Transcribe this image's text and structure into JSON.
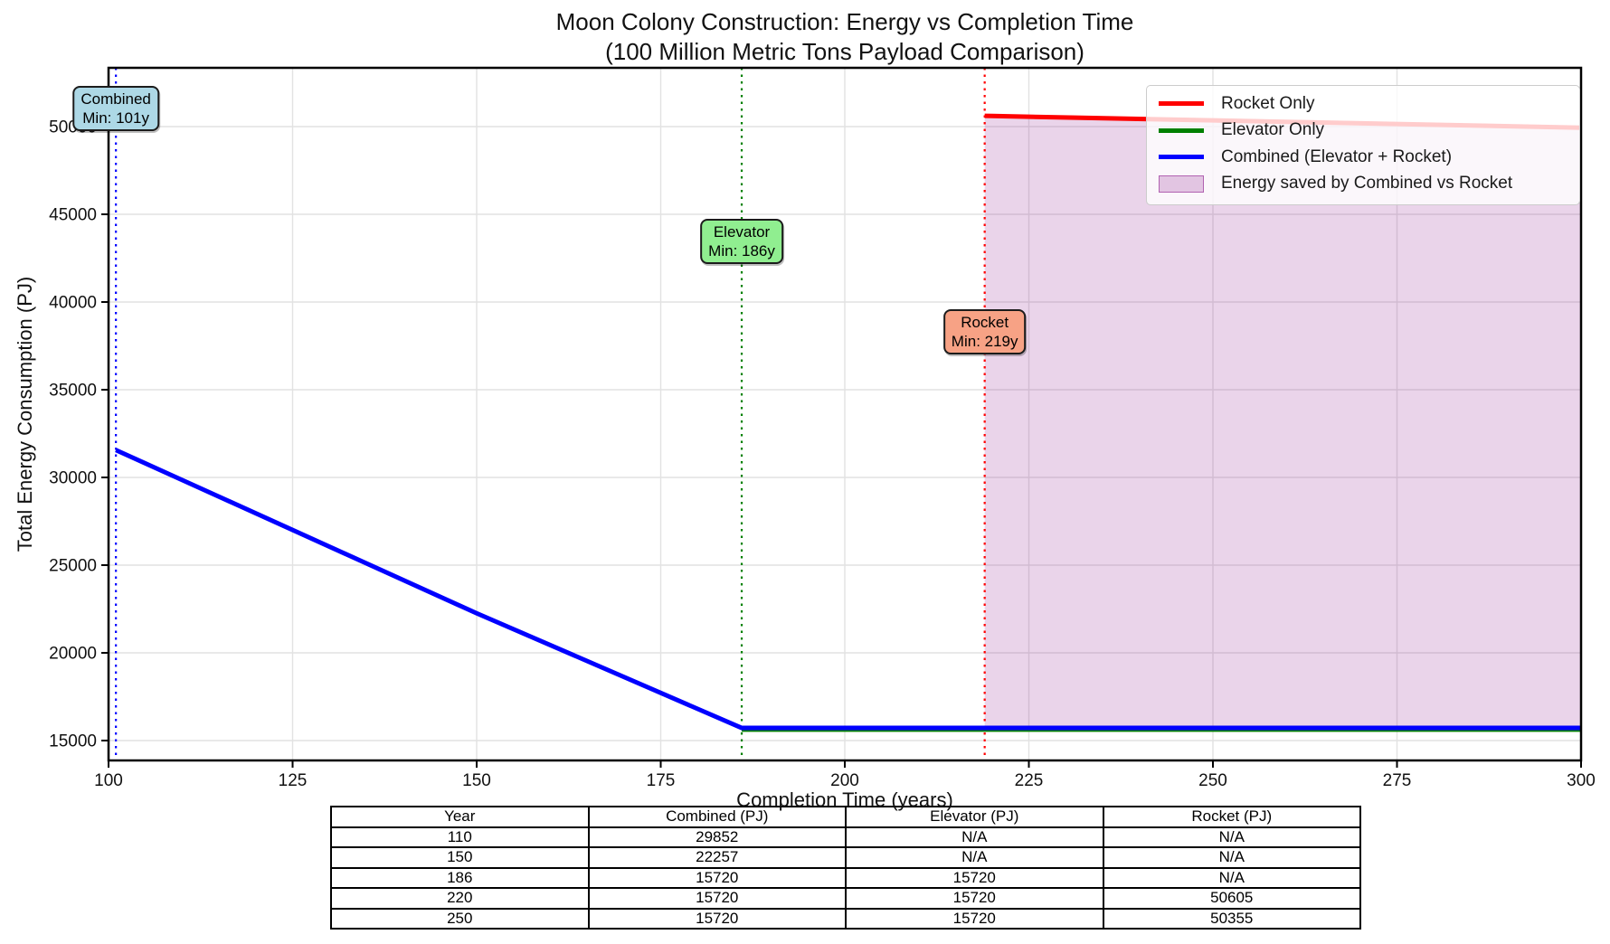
{
  "chart_data": {
    "type": "line",
    "title": "Moon Colony Construction: Energy vs Completion Time",
    "subtitle": "(100 Million Metric Tons Payload Comparison)",
    "xlabel": "Completion Time (years)",
    "ylabel": "Total Energy Consumption (PJ)",
    "xlim": [
      100,
      300
    ],
    "ylim": [
      13866,
      53351
    ],
    "xticks": [
      100,
      125,
      150,
      175,
      200,
      225,
      250,
      275,
      300
    ],
    "yticks": [
      15000,
      20000,
      25000,
      30000,
      35000,
      40000,
      45000,
      50000
    ],
    "grid": true,
    "legend_position": "top-right",
    "series": [
      {
        "name": "Rocket Only",
        "color": "#ff0000",
        "points": [
          [
            219,
            50613
          ],
          [
            220,
            50605
          ],
          [
            250,
            50355
          ],
          [
            300,
            49938
          ]
        ]
      },
      {
        "name": "Elevator Only",
        "color": "#008000",
        "points": [
          [
            186,
            15720
          ],
          [
            300,
            15720
          ]
        ]
      },
      {
        "name": "Combined (Elevator + Rocket)",
        "color": "#0000ff",
        "points": [
          [
            101,
            31561
          ],
          [
            110,
            29852
          ],
          [
            150,
            22257
          ],
          [
            186,
            15720
          ],
          [
            300,
            15720
          ]
        ]
      }
    ],
    "fill_region": {
      "label": "Energy saved by Combined vs Rocket",
      "color": "#800080",
      "alpha": 0.17,
      "polygon": [
        [
          219,
          50613
        ],
        [
          250,
          50355
        ],
        [
          300,
          49938
        ],
        [
          300,
          15720
        ],
        [
          219,
          15720
        ]
      ]
    },
    "vlines": [
      {
        "x": 101,
        "color": "#0000ff"
      },
      {
        "x": 186,
        "color": "#008000"
      },
      {
        "x": 219,
        "color": "#ff0000"
      }
    ],
    "annotations": [
      {
        "line1": "Combined",
        "line2": "Min: 101y",
        "x": 101,
        "fill": "#add8e6"
      },
      {
        "line1": "Elevator",
        "line2": "Min: 186y",
        "x": 186,
        "fill": "#90ee90"
      },
      {
        "line1": "Rocket",
        "line2": "Min: 219y",
        "x": 219,
        "fill": "#f7a285"
      }
    ],
    "legend": {
      "entries": [
        {
          "label": "Rocket Only",
          "type": "line",
          "color": "#ff0000"
        },
        {
          "label": "Elevator Only",
          "type": "line",
          "color": "#008000"
        },
        {
          "label": "Combined (Elevator + Rocket)",
          "type": "line",
          "color": "#0000ff"
        },
        {
          "label": "Energy saved by Combined vs Rocket",
          "type": "patch",
          "color": "#800080"
        }
      ]
    }
  },
  "table": {
    "headers": [
      "Year",
      "Combined (PJ)",
      "Elevator (PJ)",
      "Rocket (PJ)"
    ],
    "rows": [
      [
        "110",
        "29852",
        "N/A",
        "N/A"
      ],
      [
        "150",
        "22257",
        "N/A",
        "N/A"
      ],
      [
        "186",
        "15720",
        "15720",
        "N/A"
      ],
      [
        "220",
        "15720",
        "15720",
        "50605"
      ],
      [
        "250",
        "15720",
        "15720",
        "50355"
      ]
    ]
  }
}
